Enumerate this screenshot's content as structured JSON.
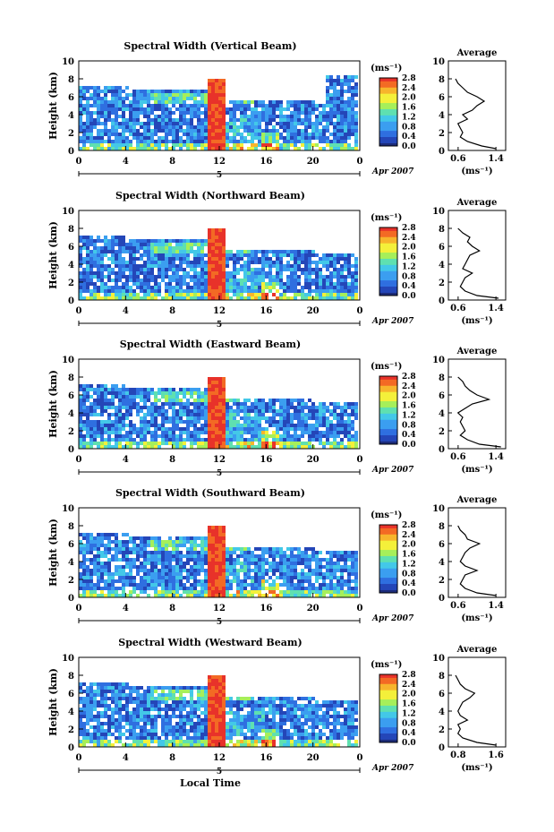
{
  "chart_data": [
    {
      "type": "heatmap",
      "title": "Spectral Width (Vertical Beam)",
      "ylabel": "Height (km)",
      "ylim": [
        0,
        10
      ],
      "yticks": [
        "0",
        "2",
        "4",
        "6",
        "8",
        "10"
      ],
      "xlim": [
        0,
        24
      ],
      "xticks": [
        "0",
        "4",
        "8",
        "12",
        "16",
        "20",
        "0"
      ],
      "date_marker": "5",
      "date_label": "Apr 2007",
      "colorbar": {
        "unit": "(ms⁻¹)",
        "ticks": [
          "0.0",
          "0.4",
          "0.8",
          "1.2",
          "1.6",
          "2.0",
          "2.4",
          "2.8"
        ]
      },
      "profile": {
        "title": "Average",
        "xlabel": "(ms⁻¹)",
        "xticks": [
          "0.6",
          "1.4"
        ],
        "yticks": [
          "0",
          "2",
          "4",
          "6",
          "8",
          "10"
        ],
        "xlim": [
          0.4,
          1.6
        ],
        "height": [
          0.2,
          0.5,
          1,
          1.5,
          2,
          2.5,
          3,
          3.5,
          4,
          4.5,
          5,
          5.5,
          6,
          6.5,
          7,
          7.5,
          8
        ],
        "width": [
          1.4,
          1.1,
          0.8,
          0.65,
          0.7,
          0.65,
          0.6,
          0.8,
          0.7,
          0.9,
          1.0,
          1.15,
          1.0,
          0.8,
          0.7,
          0.6,
          0.55
        ]
      }
    },
    {
      "type": "heatmap",
      "title": "Spectral Width (Northward Beam)",
      "ylabel": "Height (km)",
      "ylim": [
        0,
        10
      ],
      "yticks": [
        "0",
        "2",
        "4",
        "6",
        "8",
        "10"
      ],
      "xlim": [
        0,
        24
      ],
      "xticks": [
        "0",
        "4",
        "8",
        "12",
        "16",
        "20",
        "0"
      ],
      "date_marker": "5",
      "date_label": "Apr 2007",
      "colorbar": {
        "unit": "(ms⁻¹)",
        "ticks": [
          "0.0",
          "0.4",
          "0.8",
          "1.2",
          "1.6",
          "2.0",
          "2.4",
          "2.8"
        ]
      },
      "profile": {
        "title": "Average",
        "xlabel": "(ms⁻¹)",
        "xticks": [
          "0.6",
          "1.4"
        ],
        "yticks": [
          "0",
          "2",
          "4",
          "6",
          "8",
          "10"
        ],
        "xlim": [
          0.4,
          1.6
        ],
        "height": [
          0.2,
          0.5,
          1,
          1.5,
          2,
          2.5,
          3,
          3.5,
          4,
          4.5,
          5,
          5.5,
          6,
          6.5,
          7,
          7.5,
          8
        ],
        "width": [
          1.45,
          1.0,
          0.75,
          0.65,
          0.7,
          0.75,
          0.9,
          0.7,
          0.75,
          0.8,
          0.85,
          1.05,
          0.9,
          0.8,
          0.85,
          0.7,
          0.6
        ]
      }
    },
    {
      "type": "heatmap",
      "title": "Spectral Width (Eastward Beam)",
      "ylabel": "Height (km)",
      "ylim": [
        0,
        10
      ],
      "yticks": [
        "0",
        "2",
        "4",
        "6",
        "8",
        "10"
      ],
      "xlim": [
        0,
        24
      ],
      "xticks": [
        "0",
        "4",
        "8",
        "12",
        "16",
        "20",
        "0"
      ],
      "date_marker": "5",
      "date_label": "Apr 2007",
      "colorbar": {
        "unit": "(ms⁻¹)",
        "ticks": [
          "0.0",
          "0.4",
          "0.8",
          "1.2",
          "1.6",
          "2.0",
          "2.4",
          "2.8"
        ]
      },
      "profile": {
        "title": "Average",
        "xlabel": "(ms⁻¹)",
        "xticks": [
          "0.6",
          "1.4"
        ],
        "yticks": [
          "0",
          "2",
          "4",
          "6",
          "8",
          "10"
        ],
        "xlim": [
          0.4,
          1.6
        ],
        "height": [
          0.2,
          0.5,
          1,
          1.5,
          2,
          2.5,
          3,
          3.5,
          4,
          4.5,
          5,
          5.5,
          6,
          6.5,
          7,
          7.5,
          8
        ],
        "width": [
          1.5,
          1.05,
          0.8,
          0.65,
          0.75,
          0.7,
          0.65,
          0.7,
          0.6,
          0.75,
          0.9,
          1.25,
          1.0,
          0.85,
          0.75,
          0.7,
          0.6
        ]
      }
    },
    {
      "type": "heatmap",
      "title": "Spectral Width (Southward Beam)",
      "ylabel": "Height (km)",
      "ylim": [
        0,
        10
      ],
      "yticks": [
        "0",
        "2",
        "4",
        "6",
        "8",
        "10"
      ],
      "xlim": [
        0,
        24
      ],
      "xticks": [
        "0",
        "4",
        "8",
        "12",
        "16",
        "20",
        "0"
      ],
      "date_marker": "5",
      "date_label": "Apr 2007",
      "colorbar": {
        "unit": "(ms⁻¹)",
        "ticks": [
          "0.0",
          "0.4",
          "0.8",
          "1.2",
          "1.6",
          "2.0",
          "2.4",
          "2.8"
        ]
      },
      "profile": {
        "title": "Average",
        "xlabel": "(ms⁻¹)",
        "xticks": [
          "0.6",
          "1.4"
        ],
        "yticks": [
          "0",
          "2",
          "4",
          "6",
          "8",
          "10"
        ],
        "xlim": [
          0.4,
          1.6
        ],
        "height": [
          0.2,
          0.5,
          1,
          1.5,
          2,
          2.5,
          3,
          3.5,
          4,
          4.5,
          5,
          5.5,
          6,
          6.5,
          7,
          7.5,
          8
        ],
        "width": [
          1.4,
          1.0,
          0.75,
          0.65,
          0.7,
          0.75,
          1.0,
          0.75,
          0.65,
          0.7,
          0.75,
          0.85,
          1.05,
          0.8,
          0.75,
          0.65,
          0.6
        ]
      }
    },
    {
      "type": "heatmap",
      "title": "Spectral Width (Westward Beam)",
      "ylabel": "Height (km)",
      "ylim": [
        0,
        10
      ],
      "yticks": [
        "0",
        "2",
        "4",
        "6",
        "8",
        "10"
      ],
      "xlim": [
        0,
        24
      ],
      "xticks": [
        "0",
        "4",
        "8",
        "12",
        "16",
        "20",
        "0"
      ],
      "date_marker": "5",
      "date_label": "Apr 2007",
      "xlabel": "Local Time",
      "colorbar": {
        "unit": "(ms⁻¹)",
        "ticks": [
          "0.0",
          "0.4",
          "0.8",
          "1.2",
          "1.6",
          "2.0",
          "2.4",
          "2.8"
        ]
      },
      "profile": {
        "title": "Average",
        "xlabel": "(ms⁻¹)",
        "xticks": [
          "0.8",
          "1.6"
        ],
        "yticks": [
          "0",
          "2",
          "4",
          "6",
          "8",
          "10"
        ],
        "xlim": [
          0.6,
          1.8
        ],
        "height": [
          0.2,
          0.5,
          1,
          1.5,
          2,
          2.5,
          3,
          3.5,
          4,
          4.5,
          5,
          5.5,
          6,
          6.5,
          7,
          7.5,
          8
        ],
        "width": [
          1.6,
          1.2,
          0.9,
          0.8,
          0.85,
          0.8,
          1.0,
          0.85,
          0.8,
          0.85,
          0.9,
          1.05,
          1.15,
          0.95,
          0.85,
          0.8,
          0.75
        ]
      }
    }
  ]
}
